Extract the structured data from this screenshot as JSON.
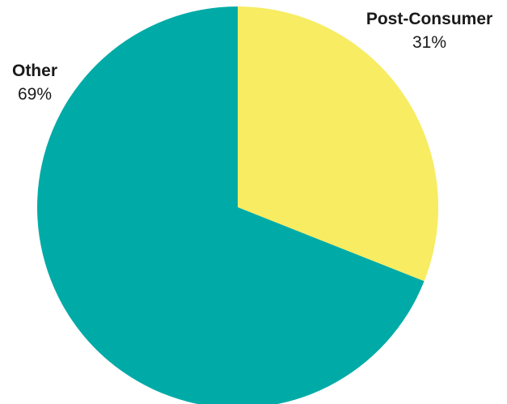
{
  "chart_data": {
    "type": "pie",
    "slices": [
      {
        "label": "Post-Consumer",
        "value": 31,
        "value_label": "31%",
        "color": "#F7EC62"
      },
      {
        "label": "Other",
        "value": 69,
        "value_label": "69%",
        "color": "#00ABA7"
      }
    ],
    "start_angle": "12 o'clock",
    "direction": "clockwise",
    "legend": "none",
    "labels": "outside"
  }
}
